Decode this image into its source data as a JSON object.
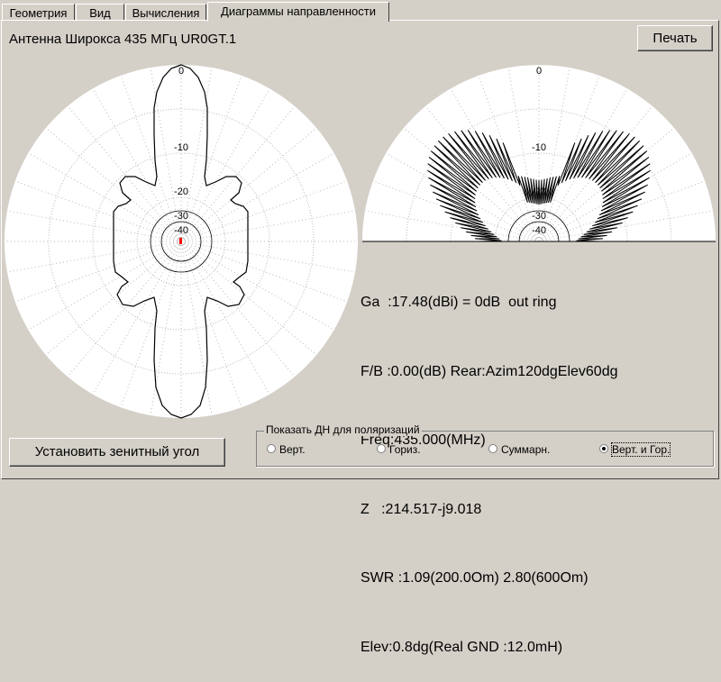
{
  "tabs": [
    {
      "label": "Геометрия"
    },
    {
      "label": "Вид"
    },
    {
      "label": "Вычисления"
    },
    {
      "label": "Диаграммы направленности",
      "active": true
    }
  ],
  "antenna_title": "Антенна Широкса 435 МГц UR0GT.1",
  "print_button": "Печать",
  "zenith_button": "Установить зенитный угол",
  "left_plot": {
    "ring_labels": [
      "0",
      "-10",
      "-20",
      "-30",
      "-40"
    ]
  },
  "right_plot": {
    "ring_labels": [
      "0",
      "-10",
      "-20",
      "-30",
      "-40"
    ]
  },
  "params": {
    "ga": "Ga  :17.48(dBi) = 0dB  out ring",
    "fb": "F/B :0.00(dB) Rear:Azim120dgElev60dg",
    "freq": "Freq:435.000(MHz)",
    "z": "Z   :214.517-j9.018",
    "swr": "SWR :1.09(200.0Om) 2.80(600Om)",
    "elev": "Elev:0.8dg(Real GND :12.0mH)"
  },
  "polarization": {
    "legend": "Показать ДН для поляризаций",
    "options": [
      {
        "label": "Верт.",
        "selected": false
      },
      {
        "label": "Гориз.",
        "selected": false
      },
      {
        "label": "Суммарн.",
        "selected": false
      },
      {
        "label": "Верт. и Гор.",
        "selected": true
      }
    ]
  },
  "colors": {
    "window_bg": "#d4d0c8",
    "plot_bg": "#ffffff",
    "pattern_line": "#000000",
    "center_marker": "#ff0000"
  }
}
